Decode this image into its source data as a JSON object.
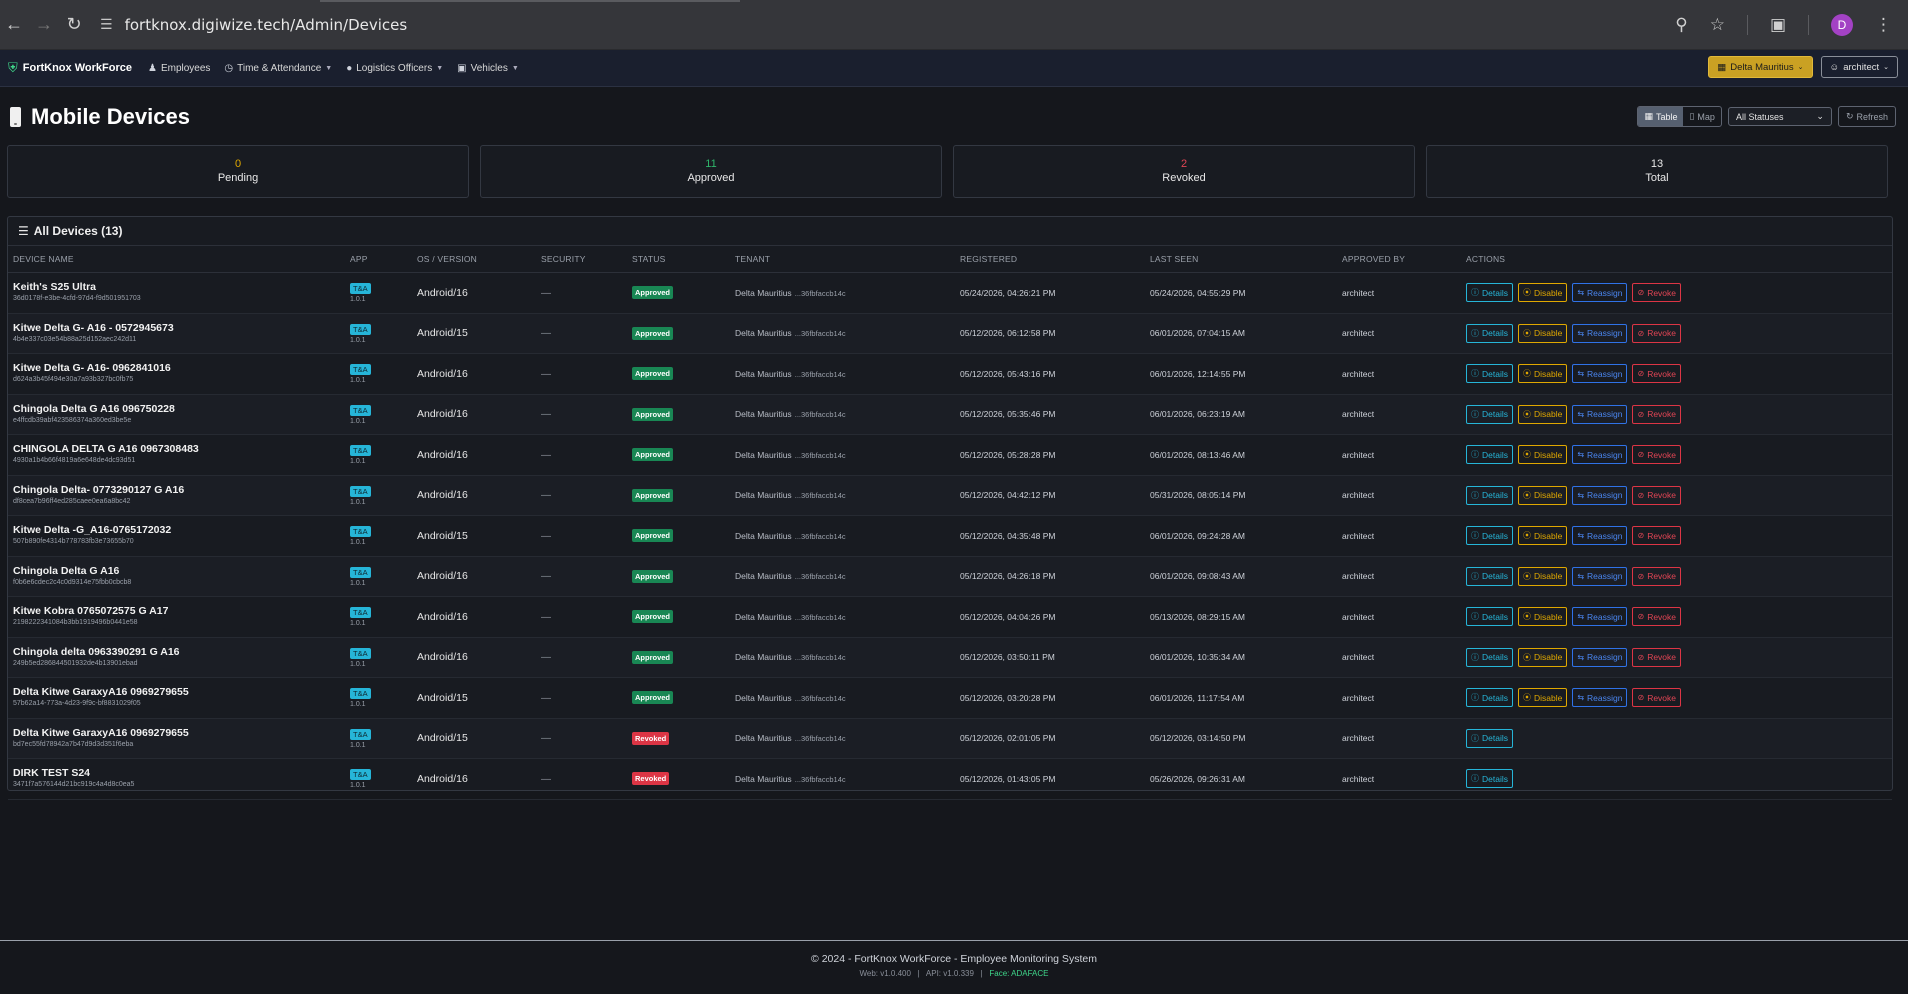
{
  "browser": {
    "url": "fortknox.digiwize.tech/Admin/Devices",
    "profile_initial": "D"
  },
  "navbar": {
    "brand": "FortKnox WorkForce",
    "items": [
      {
        "label": "Employees",
        "icon": "users-icon",
        "dropdown": false
      },
      {
        "label": "Time & Attendance",
        "icon": "clock-icon",
        "dropdown": true
      },
      {
        "label": "Logistics Officers",
        "icon": "map-pin-icon",
        "dropdown": true
      },
      {
        "label": "Vehicles",
        "icon": "truck-icon",
        "dropdown": true
      }
    ],
    "tenant": "Delta Mauritius",
    "user": "architect"
  },
  "page": {
    "title": "Mobile Devices",
    "view_table": "Table",
    "view_map": "Map",
    "status_filter": "All Statuses",
    "refresh": "Refresh"
  },
  "stats": [
    {
      "value": "0",
      "label": "Pending",
      "color": "#e0a800"
    },
    {
      "value": "11",
      "label": "Approved",
      "color": "#2fb56b"
    },
    {
      "value": "2",
      "label": "Revoked",
      "color": "#e04554"
    },
    {
      "value": "13",
      "label": "Total",
      "color": "#e8e8e8"
    }
  ],
  "table": {
    "title": "All Devices (13)",
    "columns": [
      "DEVICE NAME",
      "APP",
      "OS / VERSION",
      "SECURITY",
      "STATUS",
      "TENANT",
      "REGISTERED",
      "LAST SEEN",
      "APPROVED BY",
      "ACTIONS"
    ],
    "action_labels": {
      "details": "Details",
      "disable": "Disable",
      "reassign": "Reassign",
      "revoke": "Revoke"
    },
    "rows": [
      {
        "name": "Keith's S25 Ultra",
        "id": "36d0178f-e3be-4cfd-97d4-f9d501951703",
        "app": "T&A",
        "app_ver": "1.0.1",
        "os": "Android/16",
        "security": "—",
        "status": "Approved",
        "tenant": "Delta Mauritius",
        "tenant_id": "...36fbfaccb14c",
        "registered": "05/24/2026, 04:26:21 PM",
        "last_seen": "05/24/2026, 04:55:29 PM",
        "approved_by": "architect"
      },
      {
        "name": "Kitwe Delta G- A16 - 0572945673",
        "id": "4b4e337c03e54b88a25d152aec242d11",
        "app": "T&A",
        "app_ver": "1.0.1",
        "os": "Android/15",
        "security": "—",
        "status": "Approved",
        "tenant": "Delta Mauritius",
        "tenant_id": "...36fbfaccb14c",
        "registered": "05/12/2026, 06:12:58 PM",
        "last_seen": "06/01/2026, 07:04:15 AM",
        "approved_by": "architect"
      },
      {
        "name": "Kitwe Delta G- A16- 0962841016",
        "id": "d624a3b45f494e30a7a93b327bc0fb75",
        "app": "T&A",
        "app_ver": "1.0.1",
        "os": "Android/16",
        "security": "—",
        "status": "Approved",
        "tenant": "Delta Mauritius",
        "tenant_id": "...36fbfaccb14c",
        "registered": "05/12/2026, 05:43:16 PM",
        "last_seen": "06/01/2026, 12:14:55 PM",
        "approved_by": "architect"
      },
      {
        "name": "Chingola Delta G A16 096750228",
        "id": "e4ffcdb39abf423586374a360ed3be5e",
        "app": "T&A",
        "app_ver": "1.0.1",
        "os": "Android/16",
        "security": "—",
        "status": "Approved",
        "tenant": "Delta Mauritius",
        "tenant_id": "...36fbfaccb14c",
        "registered": "05/12/2026, 05:35:46 PM",
        "last_seen": "06/01/2026, 06:23:19 AM",
        "approved_by": "architect"
      },
      {
        "name": "CHINGOLA DELTA G A16 0967308483",
        "id": "4930a1b4b66f4819a6e648de4dc93d51",
        "app": "T&A",
        "app_ver": "1.0.1",
        "os": "Android/16",
        "security": "—",
        "status": "Approved",
        "tenant": "Delta Mauritius",
        "tenant_id": "...36fbfaccb14c",
        "registered": "05/12/2026, 05:28:28 PM",
        "last_seen": "06/01/2026, 08:13:46 AM",
        "approved_by": "architect"
      },
      {
        "name": "Chingola Delta- 0773290127 G A16",
        "id": "df8cea7b96ff4ed285caee0ea6a8bc42",
        "app": "T&A",
        "app_ver": "1.0.1",
        "os": "Android/16",
        "security": "—",
        "status": "Approved",
        "tenant": "Delta Mauritius",
        "tenant_id": "...36fbfaccb14c",
        "registered": "05/12/2026, 04:42:12 PM",
        "last_seen": "05/31/2026, 08:05:14 PM",
        "approved_by": "architect"
      },
      {
        "name": "Kitwe Delta -G_A16-0765172032",
        "id": "507b890fe4314b778783fb3e73655b70",
        "app": "T&A",
        "app_ver": "1.0.1",
        "os": "Android/15",
        "security": "—",
        "status": "Approved",
        "tenant": "Delta Mauritius",
        "tenant_id": "...36fbfaccb14c",
        "registered": "05/12/2026, 04:35:48 PM",
        "last_seen": "06/01/2026, 09:24:28 AM",
        "approved_by": "architect"
      },
      {
        "name": "Chingola Delta G A16",
        "id": "f0b6e6cdec2c4c0d9314e75fbb0cbcb8",
        "app": "T&A",
        "app_ver": "1.0.1",
        "os": "Android/16",
        "security": "—",
        "status": "Approved",
        "tenant": "Delta Mauritius",
        "tenant_id": "...36fbfaccb14c",
        "registered": "05/12/2026, 04:26:18 PM",
        "last_seen": "06/01/2026, 09:08:43 AM",
        "approved_by": "architect"
      },
      {
        "name": "Kitwe Kobra 0765072575 G A17",
        "id": "2198222341084b3bb1919496b0441e58",
        "app": "T&A",
        "app_ver": "1.0.1",
        "os": "Android/16",
        "security": "—",
        "status": "Approved",
        "tenant": "Delta Mauritius",
        "tenant_id": "...36fbfaccb14c",
        "registered": "05/12/2026, 04:04:26 PM",
        "last_seen": "05/13/2026, 08:29:15 AM",
        "approved_by": "architect"
      },
      {
        "name": "Chingola delta 0963390291 G A16",
        "id": "249b5ed286844501932de4b13901ebad",
        "app": "T&A",
        "app_ver": "1.0.1",
        "os": "Android/16",
        "security": "—",
        "status": "Approved",
        "tenant": "Delta Mauritius",
        "tenant_id": "...36fbfaccb14c",
        "registered": "05/12/2026, 03:50:11 PM",
        "last_seen": "06/01/2026, 10:35:34 AM",
        "approved_by": "architect"
      },
      {
        "name": "Delta Kitwe GaraxyA16 0969279655",
        "id": "57b62a14-773a-4d23-9f9c-bf8831029f05",
        "app": "T&A",
        "app_ver": "1.0.1",
        "os": "Android/15",
        "security": "—",
        "status": "Approved",
        "tenant": "Delta Mauritius",
        "tenant_id": "...36fbfaccb14c",
        "registered": "05/12/2026, 03:20:28 PM",
        "last_seen": "06/01/2026, 11:17:54 AM",
        "approved_by": "architect"
      },
      {
        "name": "Delta Kitwe GaraxyA16 0969279655",
        "id": "bd7ec55fd78942a7b47d9d3d351f6eba",
        "app": "T&A",
        "app_ver": "1.0.1",
        "os": "Android/15",
        "security": "—",
        "status": "Revoked",
        "tenant": "Delta Mauritius",
        "tenant_id": "...36fbfaccb14c",
        "registered": "05/12/2026, 02:01:05 PM",
        "last_seen": "05/12/2026, 03:14:50 PM",
        "approved_by": "architect"
      },
      {
        "name": "DIRK TEST S24",
        "id": "3471f7a576144d21bc919c4a4d8c0ea5",
        "app": "T&A",
        "app_ver": "1.0.1",
        "os": "Android/16",
        "security": "—",
        "status": "Revoked",
        "tenant": "Delta Mauritius",
        "tenant_id": "...36fbfaccb14c",
        "registered": "05/12/2026, 01:43:05 PM",
        "last_seen": "05/26/2026, 09:26:31 AM",
        "approved_by": "architect"
      }
    ]
  },
  "footer": {
    "copyright": "© 2024 - FortKnox WorkForce - Employee Monitoring System",
    "web": "Web: v1.0.400",
    "api": "API: v1.0.339",
    "face": "Face: ADAFACE"
  }
}
